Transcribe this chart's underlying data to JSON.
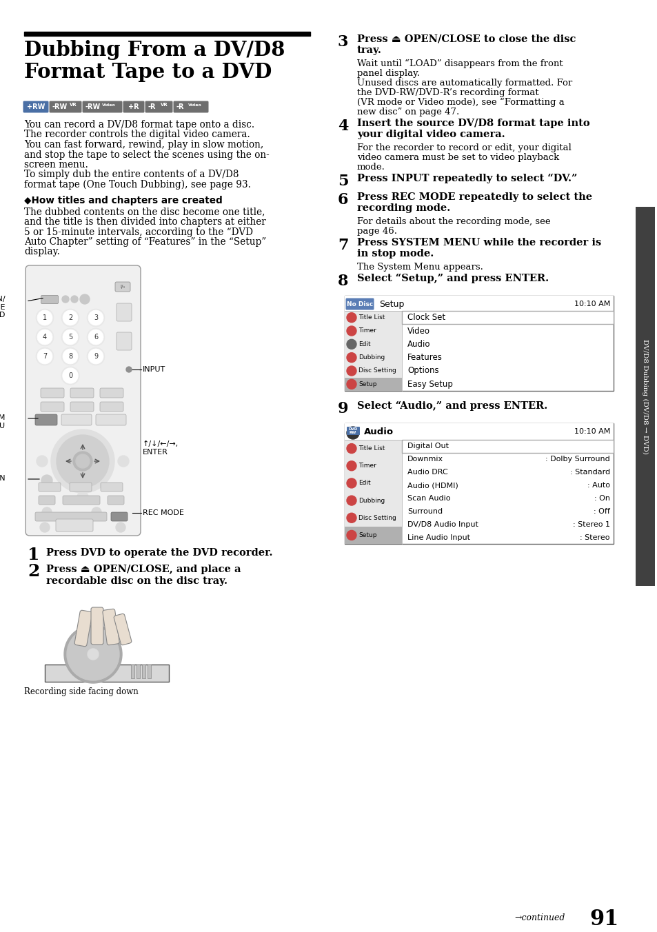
{
  "page_bg": "#ffffff",
  "title": "Dubbing From a DV/D8\nFormat Tape to a DVD",
  "body_text_left": [
    "You can record a DV/D8 format tape onto a disc.",
    "The recorder controls the digital video camera.",
    "You can fast forward, rewind, play in slow motion,",
    "and stop the tape to select the scenes using the on-",
    "screen menu.",
    "To simply dub the entire contents of a DV/D8",
    "format tape (One Touch Dubbing), see page 93."
  ],
  "section_title": "◆How titles and chapters are created",
  "section_body": [
    "The dubbed contents on the disc become one title,",
    "and the title is then divided into chapters at either",
    "5 or 15-minute intervals, according to the “DVD",
    "Auto Chapter” setting of “Features” in the “Setup”",
    "display."
  ],
  "caption_left": "Recording side facing down",
  "setup_menu_items_left": [
    "Title List",
    "Timer",
    "Edit",
    "Dubbing",
    "Disc Setting",
    "Setup"
  ],
  "setup_menu_items_right": [
    "Clock Set",
    "Video",
    "Audio",
    "Features",
    "Options",
    "Easy Setup"
  ],
  "audio_menu_items_left": [
    "Title List",
    "Timer",
    "Edit",
    "Dubbing",
    "Disc Setting",
    "Setup"
  ],
  "audio_menu_items_right": [
    {
      "label": "Digital Out",
      "value": ""
    },
    {
      "label": "Downmix",
      "value": ": Dolby Surround"
    },
    {
      "label": "Audio DRC",
      "value": ": Standard"
    },
    {
      "label": "Audio (HDMI)",
      "value": ": Auto"
    },
    {
      "label": "Scan Audio",
      "value": ": On"
    },
    {
      "label": "Surround",
      "value": ": Off"
    },
    {
      "label": "DV/D8 Audio Input",
      "value": ": Stereo 1"
    },
    {
      "label": "Line Audio Input",
      "value": ": Stereo"
    }
  ],
  "sidebar_text": "DV/D8 Dubbing (DV/D8 → DVD)",
  "page_num": "91",
  "continued_text": "→continued"
}
